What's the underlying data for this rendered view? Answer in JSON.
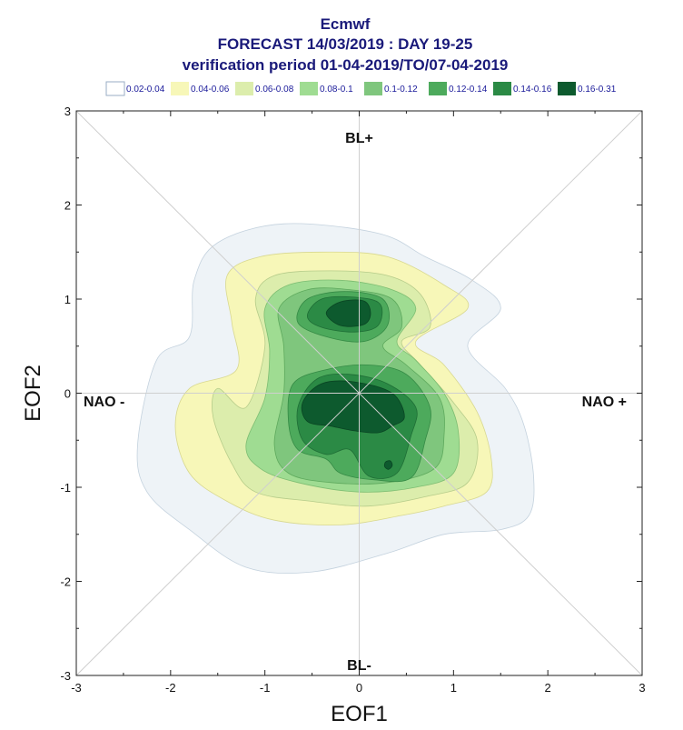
{
  "chart_data": {
    "type": "contour",
    "title_lines": [
      "Ecmwf",
      "FORECAST 14/03/2019 : DAY 19-25",
      "verification period 01-04-2019/TO/07-04-2019"
    ],
    "xlabel": "EOF1",
    "ylabel": "EOF2",
    "xlim": [
      -3,
      3
    ],
    "ylim": [
      -3,
      3
    ],
    "xticks": [
      -3,
      -2,
      -1,
      0,
      1,
      2,
      3
    ],
    "yticks": [
      -3,
      -2,
      -1,
      0,
      1,
      2,
      3
    ],
    "regime_labels": {
      "top": "BL+",
      "bottom": "BL-",
      "left": "NAO -",
      "right": "NAO +"
    },
    "legend": [
      {
        "label": "0.02-0.04",
        "color": "#ffffff"
      },
      {
        "label": "0.04-0.06",
        "color": "#f7f7b8"
      },
      {
        "label": "0.06-0.08",
        "color": "#dcedac"
      },
      {
        "label": "0.08-0.1",
        "color": "#9fdc92"
      },
      {
        "label": "0.1-0.12",
        "color": "#7fc67d"
      },
      {
        "label": "0.12-0.14",
        "color": "#4daa5c"
      },
      {
        "label": "0.14-0.16",
        "color": "#2b8a45"
      },
      {
        "label": "0.16-0.31",
        "color": "#0d5a2e"
      }
    ],
    "density_levels": [
      {
        "level": "0.02-0.04",
        "fill": "#eef3f7",
        "stroke": "#c4d2de",
        "polygons": [
          [
            [
              -2.35,
              -0.55
            ],
            [
              -2.15,
              0.35
            ],
            [
              -1.8,
              0.6
            ],
            [
              -1.75,
              1.2
            ],
            [
              -1.5,
              1.6
            ],
            [
              -0.8,
              1.8
            ],
            [
              0.2,
              1.7
            ],
            [
              0.7,
              1.45
            ],
            [
              1.2,
              1.2
            ],
            [
              1.5,
              0.9
            ],
            [
              1.15,
              0.5
            ],
            [
              1.55,
              0.05
            ],
            [
              1.75,
              -0.35
            ],
            [
              1.85,
              -0.9
            ],
            [
              1.8,
              -1.3
            ],
            [
              1.5,
              -1.45
            ],
            [
              0.9,
              -1.5
            ],
            [
              0.3,
              -1.7
            ],
            [
              -0.5,
              -1.9
            ],
            [
              -1.2,
              -1.85
            ],
            [
              -1.8,
              -1.45
            ],
            [
              -2.25,
              -1.05
            ]
          ]
        ]
      },
      {
        "level": "0.04-0.06",
        "fill": "#f7f7b8",
        "stroke": "#d8d890",
        "polygons": [
          [
            [
              -1.95,
              -0.35
            ],
            [
              -1.8,
              0.05
            ],
            [
              -1.3,
              0.25
            ],
            [
              -1.35,
              0.75
            ],
            [
              -1.4,
              1.25
            ],
            [
              -1.05,
              1.45
            ],
            [
              -0.4,
              1.5
            ],
            [
              0.3,
              1.45
            ],
            [
              0.9,
              1.15
            ],
            [
              1.15,
              0.9
            ],
            [
              0.6,
              0.55
            ],
            [
              0.9,
              0.3
            ],
            [
              1.25,
              -0.2
            ],
            [
              1.4,
              -0.7
            ],
            [
              1.35,
              -1.05
            ],
            [
              0.9,
              -1.2
            ],
            [
              0.45,
              -1.3
            ],
            [
              -0.2,
              -1.4
            ],
            [
              -0.9,
              -1.35
            ],
            [
              -1.4,
              -1.15
            ],
            [
              -1.8,
              -0.85
            ]
          ]
        ]
      },
      {
        "level": "0.06-0.08",
        "fill": "#dcedac",
        "stroke": "#b6cc8a",
        "polygons": [
          [
            [
              -1.55,
              -0.25
            ],
            [
              -1.5,
              0.05
            ],
            [
              -1.2,
              -0.15
            ],
            [
              -1.0,
              0.5
            ],
            [
              -1.1,
              1.0
            ],
            [
              -0.9,
              1.25
            ],
            [
              -0.3,
              1.3
            ],
            [
              0.3,
              1.25
            ],
            [
              0.65,
              1.05
            ],
            [
              0.75,
              0.7
            ],
            [
              0.45,
              0.55
            ],
            [
              0.65,
              0.3
            ],
            [
              1.0,
              -0.1
            ],
            [
              1.25,
              -0.5
            ],
            [
              1.15,
              -0.95
            ],
            [
              0.7,
              -1.1
            ],
            [
              0.1,
              -1.2
            ],
            [
              -0.5,
              -1.15
            ],
            [
              -1.1,
              -1.05
            ],
            [
              -1.35,
              -0.75
            ]
          ]
        ]
      },
      {
        "level": "0.08-0.1",
        "fill": "#9fdc92",
        "stroke": "#7dbd72",
        "polygons": [
          [
            [
              -1.2,
              -0.55
            ],
            [
              -1.0,
              -0.05
            ],
            [
              -0.95,
              0.45
            ],
            [
              -1.0,
              0.9
            ],
            [
              -0.75,
              1.15
            ],
            [
              -0.2,
              1.2
            ],
            [
              0.35,
              1.1
            ],
            [
              0.6,
              0.9
            ],
            [
              0.4,
              0.55
            ],
            [
              0.6,
              0.35
            ],
            [
              0.9,
              0.0
            ],
            [
              1.05,
              -0.4
            ],
            [
              1.0,
              -0.85
            ],
            [
              0.6,
              -1.0
            ],
            [
              0.0,
              -1.05
            ],
            [
              -0.65,
              -0.95
            ],
            [
              -1.05,
              -0.8
            ]
          ]
        ]
      },
      {
        "level": "0.1-0.12",
        "fill": "#7fc67d",
        "stroke": "#5ea95d",
        "polygons": [
          [
            [
              -0.9,
              -0.55
            ],
            [
              -0.8,
              0.0
            ],
            [
              -0.8,
              0.5
            ],
            [
              -0.85,
              0.9
            ],
            [
              -0.55,
              1.1
            ],
            [
              -0.1,
              1.1
            ],
            [
              0.35,
              1.0
            ],
            [
              0.45,
              0.7
            ],
            [
              0.25,
              0.5
            ],
            [
              0.5,
              0.3
            ],
            [
              0.85,
              -0.05
            ],
            [
              0.9,
              -0.45
            ],
            [
              0.8,
              -0.8
            ],
            [
              0.3,
              -0.95
            ],
            [
              -0.3,
              -0.95
            ],
            [
              -0.75,
              -0.85
            ]
          ]
        ]
      },
      {
        "level": "0.12-0.14",
        "fill": "#4daa5c",
        "stroke": "#358a45",
        "polygons": [
          [
            [
              -0.75,
              -0.3
            ],
            [
              -0.7,
              0.1
            ],
            [
              -0.35,
              0.25
            ],
            [
              0.1,
              0.3
            ],
            [
              0.5,
              0.2
            ],
            [
              0.75,
              -0.15
            ],
            [
              0.7,
              -0.5
            ],
            [
              0.55,
              -0.9
            ],
            [
              0.15,
              -0.92
            ],
            [
              -0.2,
              -0.85
            ],
            [
              -0.35,
              -0.7
            ],
            [
              -0.65,
              -0.6
            ]
          ],
          [
            [
              -0.65,
              0.75
            ],
            [
              -0.55,
              1.0
            ],
            [
              -0.15,
              1.08
            ],
            [
              0.25,
              1.0
            ],
            [
              0.3,
              0.72
            ],
            [
              0.05,
              0.55
            ],
            [
              -0.35,
              0.6
            ]
          ]
        ]
      },
      {
        "level": "0.14-0.16",
        "fill": "#2b8a45",
        "stroke": "#1f6e36",
        "polygons": [
          [
            [
              -0.65,
              -0.15
            ],
            [
              -0.45,
              0.15
            ],
            [
              -0.1,
              0.2
            ],
            [
              0.3,
              0.1
            ],
            [
              0.6,
              -0.15
            ],
            [
              0.55,
              -0.45
            ],
            [
              0.4,
              -0.85
            ],
            [
              0.1,
              -0.88
            ],
            [
              -0.1,
              -0.6
            ],
            [
              -0.35,
              -0.65
            ],
            [
              -0.6,
              -0.5
            ]
          ],
          [
            [
              -0.55,
              0.82
            ],
            [
              -0.4,
              1.0
            ],
            [
              -0.05,
              1.02
            ],
            [
              0.22,
              0.95
            ],
            [
              0.2,
              0.72
            ],
            [
              -0.05,
              0.65
            ],
            [
              -0.4,
              0.7
            ]
          ]
        ]
      },
      {
        "level": "0.16-0.31",
        "fill": "#0d5a2e",
        "stroke": "#0a4523",
        "polygons": [
          [
            [
              -0.6,
              -0.1
            ],
            [
              -0.4,
              0.1
            ],
            [
              -0.05,
              0.12
            ],
            [
              0.35,
              0.0
            ],
            [
              0.48,
              -0.25
            ],
            [
              0.35,
              -0.35
            ],
            [
              0.2,
              -0.42
            ],
            [
              -0.05,
              -0.4
            ],
            [
              -0.3,
              -0.35
            ],
            [
              -0.55,
              -0.3
            ]
          ],
          [
            [
              -0.35,
              0.85
            ],
            [
              -0.2,
              0.97
            ],
            [
              0.05,
              0.98
            ],
            [
              0.12,
              0.85
            ],
            [
              0.05,
              0.73
            ],
            [
              -0.2,
              0.72
            ]
          ],
          [
            [
              0.28,
              -0.73
            ],
            [
              0.33,
              -0.72
            ],
            [
              0.35,
              -0.77
            ],
            [
              0.31,
              -0.81
            ],
            [
              0.27,
              -0.78
            ]
          ]
        ]
      }
    ]
  }
}
